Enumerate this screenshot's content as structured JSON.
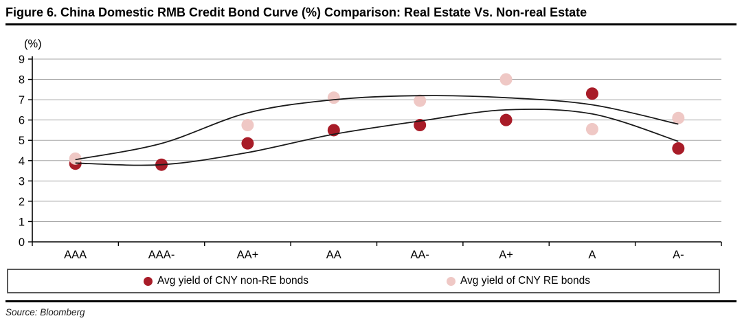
{
  "title": "Figure 6. China Domestic RMB Credit Bond Curve (%) Comparison: Real Estate Vs. Non-real Estate",
  "source": "Source: Bloomberg",
  "chart_data": {
    "type": "scatter",
    "title": "Figure 6. China Domestic RMB Credit Bond Curve (%) Comparison: Real Estate Vs. Non-real Estate",
    "unit_label": "(%)",
    "xlabel": "",
    "ylabel": "(%)",
    "categories": [
      "AAA",
      "AAA-",
      "AA+",
      "AA",
      "AA-",
      "A+",
      "A",
      "A-"
    ],
    "series": [
      {
        "name": "Avg yield of CNY non-RE bonds",
        "color": "#A81C28",
        "values": [
          3.85,
          3.8,
          4.85,
          5.5,
          5.75,
          6.0,
          7.3,
          4.6
        ]
      },
      {
        "name": "Avg yield of CNY RE bonds",
        "color": "#EFC8C5",
        "values": [
          4.1,
          null,
          5.75,
          7.1,
          6.95,
          8.0,
          5.55,
          6.1
        ]
      }
    ],
    "trend_lines": [
      {
        "for": "Avg yield of CNY RE bonds",
        "color": "#1a1a1a",
        "values": [
          4.05,
          4.85,
          6.35,
          7.0,
          7.2,
          7.1,
          6.75,
          5.8
        ]
      },
      {
        "for": "Avg yield of CNY non-RE bonds",
        "color": "#1a1a1a",
        "values": [
          3.88,
          3.8,
          4.4,
          5.3,
          5.95,
          6.5,
          6.3,
          4.95
        ]
      }
    ],
    "ylim": [
      0,
      9
    ],
    "y_ticks": [
      0,
      1,
      2,
      3,
      4,
      5,
      6,
      7,
      8,
      9
    ],
    "grid": true,
    "gridline_color": "#A6A6A6",
    "axis_color": "#000000",
    "legend_position": "bottom"
  }
}
